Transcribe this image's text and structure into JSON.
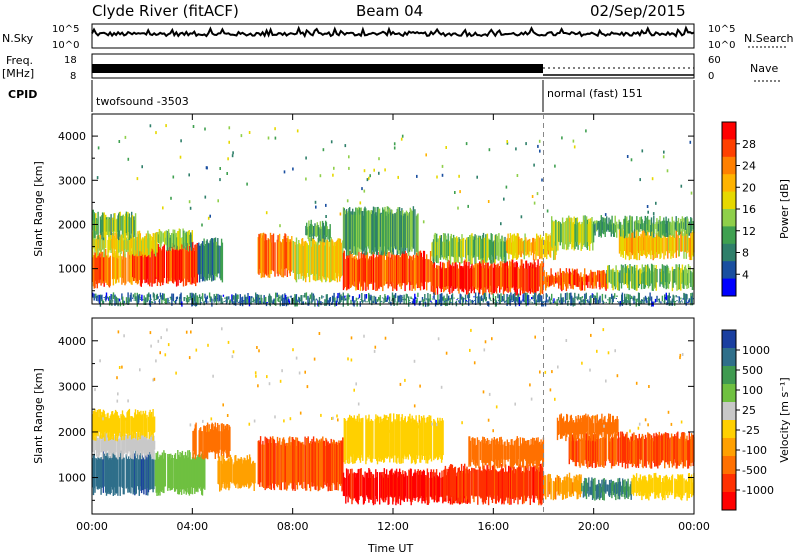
{
  "header": {
    "station": "Clyde River (fitACF)",
    "beam": "Beam 04",
    "date": "02/Sep/2015"
  },
  "summary_panels": {
    "nsky": {
      "label": "N.Sky",
      "ytick_top": "10^5",
      "ytick_bottom": "10^0"
    },
    "nsearch": {
      "label": "N.Search",
      "ytick_top": "10^5",
      "ytick_bottom": "10^0"
    },
    "freq": {
      "label_line1": "Freq.",
      "label_line2": "[MHz]",
      "ytick_top": "18",
      "ytick_bottom": "8"
    },
    "nave": {
      "label": "Nave",
      "ytick_top": "60",
      "ytick_bottom": "0"
    },
    "cpid": {
      "label": "CPID",
      "modes": [
        {
          "name": "twofsound -3503",
          "start_hour": 0,
          "end_hour": 18
        },
        {
          "name": "normal (fast) 151",
          "start_hour": 18,
          "end_hour": 24
        }
      ]
    }
  },
  "colorbars": {
    "power": {
      "label": "Power [dB]",
      "ticks": [
        "28",
        "24",
        "20",
        "16",
        "12",
        "8",
        "4"
      ],
      "colors": [
        "#ff0000",
        "#ff4000",
        "#ff8000",
        "#ffb300",
        "#e6d800",
        "#8fcf4a",
        "#3fa050",
        "#2f7f6a",
        "#1a4fa0",
        "#0000ff"
      ]
    },
    "velocity": {
      "label": "Velocity [m s⁻¹]",
      "ticks": [
        "1000",
        "500",
        "100",
        "25",
        "-25",
        "-100",
        "-500",
        "-1000"
      ],
      "colors": [
        "#1a3fa0",
        "#2f6f8a",
        "#3f9a50",
        "#6fc040",
        "#c8c8c8",
        "#ffd000",
        "#ffa000",
        "#ff7000",
        "#ff3000",
        "#ff0000"
      ]
    }
  },
  "chart_data": [
    {
      "type": "heatmap",
      "name": "power",
      "ylabel": "Slant Range [km]",
      "ylim": [
        200,
        4500
      ],
      "yticks": [
        1000,
        2000,
        3000,
        4000
      ],
      "xlim": [
        0,
        24
      ],
      "xticks": [
        "00:00",
        "04:00",
        "08:00",
        "12:00",
        "16:00",
        "20:00",
        "00:00"
      ],
      "mode_change_hour": 18,
      "bands": [
        {
          "t0": 0.0,
          "t1": 0.7,
          "r0": 650,
          "r1": 1350,
          "level": 26
        },
        {
          "t0": 0.7,
          "t1": 2.0,
          "r0": 700,
          "r1": 1300,
          "level": 22
        },
        {
          "t0": 1.6,
          "t1": 4.2,
          "r0": 700,
          "r1": 1500,
          "level": 28
        },
        {
          "t0": 0.0,
          "t1": 2.6,
          "r0": 1350,
          "r1": 1750,
          "level": 18
        },
        {
          "t0": 0.0,
          "t1": 1.8,
          "r0": 1750,
          "r1": 2200,
          "level": 14
        },
        {
          "t0": 2.6,
          "t1": 4.0,
          "r0": 1500,
          "r1": 1800,
          "level": 14
        },
        {
          "t0": 4.2,
          "t1": 5.2,
          "r0": 800,
          "r1": 1600,
          "level": 10
        },
        {
          "t0": 6.6,
          "t1": 8.0,
          "r0": 900,
          "r1": 1700,
          "level": 24
        },
        {
          "t0": 8.0,
          "t1": 10.0,
          "r0": 800,
          "r1": 1600,
          "level": 18
        },
        {
          "t0": 8.5,
          "t1": 9.5,
          "r0": 1700,
          "r1": 2000,
          "level": 12
        },
        {
          "t0": 10.0,
          "t1": 13.5,
          "r0": 600,
          "r1": 1300,
          "level": 26
        },
        {
          "t0": 10.0,
          "t1": 13.0,
          "r0": 1400,
          "r1": 2300,
          "level": 12
        },
        {
          "t0": 13.5,
          "t1": 18.0,
          "r0": 500,
          "r1": 1100,
          "level": 28
        },
        {
          "t0": 13.5,
          "t1": 16.5,
          "r0": 1200,
          "r1": 1700,
          "level": 14
        },
        {
          "t0": 16.5,
          "t1": 18.5,
          "r0": 1300,
          "r1": 1700,
          "level": 20
        },
        {
          "t0": 18.0,
          "t1": 20.5,
          "r0": 600,
          "r1": 900,
          "level": 26
        },
        {
          "t0": 18.3,
          "t1": 20.0,
          "r0": 1500,
          "r1": 2100,
          "level": 16
        },
        {
          "t0": 20.5,
          "t1": 24.0,
          "r0": 600,
          "r1": 1000,
          "level": 14
        },
        {
          "t0": 21.0,
          "t1": 24.0,
          "r0": 1300,
          "r1": 1800,
          "level": 20
        },
        {
          "t0": 20.0,
          "t1": 24.0,
          "r0": 1800,
          "r1": 2100,
          "level": 12
        },
        {
          "t0": 0.0,
          "t1": 24.0,
          "r0": 250,
          "r1": 350,
          "level": 8
        }
      ]
    },
    {
      "type": "heatmap",
      "name": "velocity",
      "ylabel": "Slant Range [km]",
      "ylim": [
        200,
        4500
      ],
      "yticks": [
        1000,
        2000,
        3000,
        4000
      ],
      "xlim": [
        0,
        24
      ],
      "xticks": [
        "00:00",
        "04:00",
        "08:00",
        "12:00",
        "16:00",
        "20:00",
        "00:00"
      ],
      "xlabel": "Time UT",
      "mode_change_hour": 18,
      "bands": [
        {
          "t0": 0.0,
          "t1": 2.5,
          "r0": 700,
          "r1": 1500,
          "level": 800
        },
        {
          "t0": 2.5,
          "t1": 4.5,
          "r0": 700,
          "r1": 1500,
          "level": 200
        },
        {
          "t0": 0.0,
          "t1": 2.5,
          "r0": 1500,
          "r1": 1900,
          "level": 60
        },
        {
          "t0": 0.0,
          "t1": 2.5,
          "r0": 1900,
          "r1": 2400,
          "level": 0
        },
        {
          "t0": 4.0,
          "t1": 5.5,
          "r0": 1500,
          "r1": 2100,
          "level": -200
        },
        {
          "t0": 6.6,
          "t1": 10.0,
          "r0": 800,
          "r1": 1800,
          "level": -300
        },
        {
          "t0": 5.0,
          "t1": 6.5,
          "r0": 800,
          "r1": 1400,
          "level": -60
        },
        {
          "t0": 10.0,
          "t1": 15.0,
          "r0": 500,
          "r1": 1100,
          "level": -600
        },
        {
          "t0": 10.0,
          "t1": 14.0,
          "r0": 1400,
          "r1": 2300,
          "level": 0
        },
        {
          "t0": 14.0,
          "t1": 18.0,
          "r0": 500,
          "r1": 1200,
          "level": -400
        },
        {
          "t0": 15.0,
          "t1": 18.0,
          "r0": 1300,
          "r1": 1800,
          "level": -200
        },
        {
          "t0": 18.0,
          "t1": 19.5,
          "r0": 600,
          "r1": 1000,
          "level": -80
        },
        {
          "t0": 19.5,
          "t1": 21.5,
          "r0": 600,
          "r1": 900,
          "level": 500
        },
        {
          "t0": 21.5,
          "t1": 24.0,
          "r0": 600,
          "r1": 1000,
          "level": 0
        },
        {
          "t0": 19.0,
          "t1": 24.0,
          "r0": 1300,
          "r1": 1900,
          "level": -300
        },
        {
          "t0": 18.5,
          "t1": 21.0,
          "r0": 1900,
          "r1": 2300,
          "level": -200
        }
      ]
    }
  ]
}
